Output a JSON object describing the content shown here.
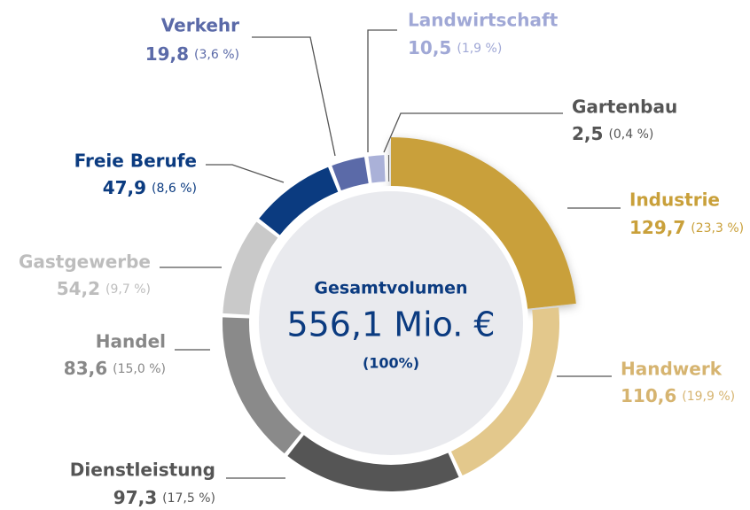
{
  "chart_data": {
    "type": "pie",
    "donut": true,
    "categories": [
      "Industrie",
      "Handwerk",
      "Dienstleistung",
      "Handel",
      "Gastgewerbe",
      "Freie Berufe",
      "Verkehr",
      "Landwirtschaft",
      "Gartenbau"
    ],
    "values": [
      129.7,
      110.6,
      97.3,
      83.6,
      54.2,
      47.9,
      19.8,
      10.5,
      2.5
    ],
    "value_labels": [
      "129,7",
      "110,6",
      "97,3",
      "83,6",
      "54,2",
      "47,9",
      "19,8",
      "10,5",
      "2,5"
    ],
    "percent_labels": [
      "(23,3 %)",
      "(19,9 %)",
      "(17,5 %)",
      "(15,0 %)",
      "(9,7 %)",
      "(8,6 %)",
      "(3,6 %)",
      "(1,9 %)",
      "(0,4 %)"
    ],
    "colors": [
      "#c9a03a",
      "#e3c88c",
      "#555555",
      "#8a8a8a",
      "#c9c9c9",
      "#0b3b80",
      "#5b6aa8",
      "#aab1d8",
      "#333333"
    ],
    "label_colors": [
      "#c9a03a",
      "#d6b470",
      "#555555",
      "#888888",
      "#bdbdbd",
      "#0b3b80",
      "#5b6aa8",
      "#a0a8d6",
      "#555555"
    ],
    "center_title": "Gesamtvolumen",
    "center_value": "556,1 Mio. €",
    "center_note": "(100%)",
    "exploded": "Industrie"
  }
}
